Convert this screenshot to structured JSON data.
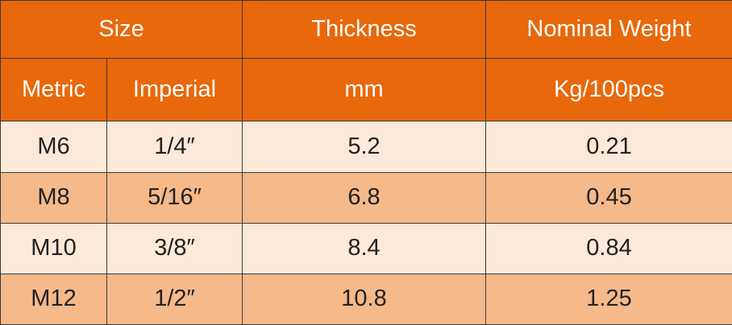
{
  "header": {
    "rows": [
      [
        "Size",
        "Thickness",
        "Nominal Weight"
      ],
      [
        "Metric",
        "Imperial",
        "mm",
        "Kg/100pcs"
      ]
    ]
  },
  "table": {
    "rows": [
      [
        "M6",
        "1/4″",
        "5.2",
        "0.21"
      ],
      [
        "M8",
        "5/16″",
        "6.8",
        "0.45"
      ],
      [
        "M10",
        "3/8″",
        "8.4",
        "0.84"
      ],
      [
        "M12",
        "1/2″",
        "10.8",
        "1.25"
      ]
    ]
  }
}
